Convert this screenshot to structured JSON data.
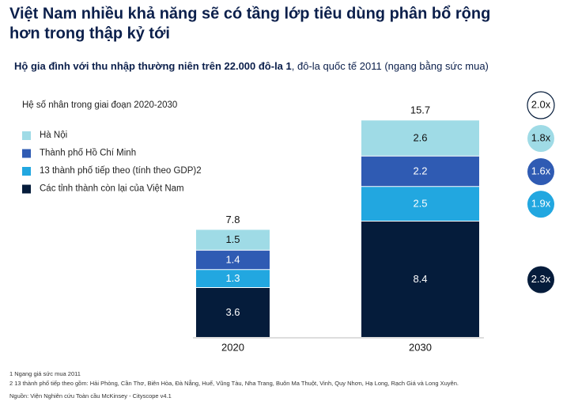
{
  "chart_data": {
    "type": "stacked-bar",
    "title_lines": [
      "Việt Nam nhiều khả năng sẽ có tầng lớp tiêu dùng phân bổ rộng",
      "hơn trong thập kỷ tới"
    ],
    "subtitle_bold": "Hộ gia đình với thu nhập thường niên trên 22.000 đô-la 1",
    "subtitle_rest": ", đô-la quốc tế 2011 (ngang bằng sức mua)",
    "legend_title": "Hệ số nhân trong giai đoạn 2020-2030",
    "categories": [
      "2020",
      "2030"
    ],
    "totals": [
      7.8,
      15.7
    ],
    "total_multiplier": "2.0x",
    "series": [
      {
        "name": "Các tỉnh thành còn lại của Việt Nam",
        "color": "#051c3b",
        "label_color": "#ffffff",
        "values": [
          3.6,
          8.4
        ],
        "multiplier": "2.3x"
      },
      {
        "name": "13 thành phố tiếp theo (tính theo GDP)2",
        "color": "#22a7e0",
        "label_color": "#ffffff",
        "values": [
          1.3,
          2.5
        ],
        "multiplier": "1.9x"
      },
      {
        "name": "Thành phố Hồ Chí Minh",
        "color": "#2f5bb3",
        "label_color": "#ffffff",
        "values": [
          1.4,
          2.2
        ],
        "multiplier": "1.6x"
      },
      {
        "name": "Hà Nội",
        "color": "#9fdbe6",
        "label_color": "#111111",
        "values": [
          1.5,
          2.6
        ],
        "multiplier": "1.8x"
      }
    ],
    "footnotes": [
      "1 Ngang giá sức mua 2011",
      "2 13 thành phố tiếp theo gồm: Hải Phòng, Cần Thơ, Biên Hòa, Đà Nẵng, Huế, Vũng Tàu, Nha Trang, Buôn Ma Thuột, Vinh, Quy Nhơn, Hạ Long, Rạch Giá và Long Xuyên.",
      "Nguồn: Viện Nghiên cứu Toàn cầu McKinsey - Cityscope v4.1"
    ]
  }
}
